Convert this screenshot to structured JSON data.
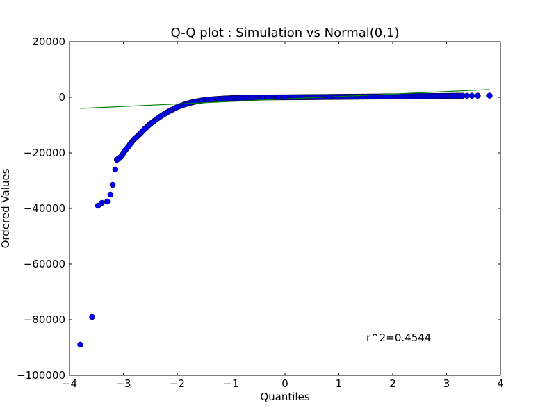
{
  "chart_data": {
    "type": "scatter",
    "title": "Q-Q plot : Simulation vs Normal(0,1)",
    "xlabel": "Quantiles",
    "ylabel": "Ordered Values",
    "xlim": [
      -4,
      4
    ],
    "ylim": [
      -100000,
      20000
    ],
    "x_ticks": [
      -4,
      -3,
      -2,
      -1,
      0,
      1,
      2,
      3,
      4
    ],
    "x_tick_labels": [
      "−4",
      "−3",
      "−2",
      "−1",
      "0",
      "1",
      "2",
      "3",
      "4"
    ],
    "y_ticks": [
      20000,
      0,
      -20000,
      -40000,
      -60000,
      -80000,
      -100000
    ],
    "y_tick_labels": [
      "20000",
      "0",
      "−20000",
      "−40000",
      "−60000",
      "−80000",
      "−100000"
    ],
    "grid": false,
    "legend": "none",
    "annotation": "r^2=0.4544",
    "colors": {
      "points_fill": "#0000ff",
      "points_edge": "#000000",
      "fit_line": "#008000",
      "axes": "#000000",
      "background": "#ffffff"
    },
    "series": [
      {
        "type": "scatter",
        "points": [
          [
            -3.8,
            -89000
          ],
          [
            -3.58,
            -79000
          ],
          [
            -3.47,
            -39000
          ],
          [
            -3.4,
            -38000
          ],
          [
            -3.3,
            -37500
          ],
          [
            -3.24,
            -35000
          ],
          [
            -3.2,
            -31500
          ],
          [
            -3.15,
            -26000
          ],
          [
            -3.12,
            -22500
          ],
          [
            -3.09,
            -22000
          ],
          [
            -3.05,
            -21500
          ],
          [
            -3.02,
            -20800
          ],
          [
            -3.0,
            -20000
          ],
          [
            -2.97,
            -19200
          ],
          [
            -2.94,
            -18500
          ],
          [
            -2.91,
            -17800
          ],
          [
            -2.88,
            -17000
          ],
          [
            -2.85,
            -16300
          ],
          [
            -2.82,
            -15500
          ],
          [
            -2.79,
            -14900
          ],
          [
            -2.76,
            -14400
          ],
          [
            -2.73,
            -13900
          ],
          [
            -2.7,
            -13300
          ],
          [
            -2.67,
            -12700
          ],
          [
            -2.64,
            -12100
          ],
          [
            -2.61,
            -11500
          ],
          [
            -2.58,
            -11000
          ],
          [
            -2.55,
            -10400
          ],
          [
            -2.52,
            -9900
          ],
          [
            -2.49,
            -9400
          ],
          [
            -2.46,
            -9000
          ],
          [
            -2.43,
            -8550
          ],
          [
            -2.4,
            -8100
          ],
          [
            -2.37,
            -7700
          ],
          [
            -2.34,
            -7300
          ],
          [
            -2.31,
            -6900
          ],
          [
            -2.28,
            -6500
          ],
          [
            -2.25,
            -6150
          ],
          [
            -2.22,
            -5800
          ],
          [
            -2.19,
            -5450
          ],
          [
            -2.16,
            -5100
          ],
          [
            -2.13,
            -4800
          ],
          [
            -2.1,
            -4500
          ],
          [
            -2.07,
            -4200
          ],
          [
            -2.04,
            -3900
          ],
          [
            -2.01,
            -3650
          ],
          [
            -1.98,
            -3400
          ],
          [
            -1.95,
            -3150
          ],
          [
            -1.92,
            -2950
          ],
          [
            -1.89,
            -2750
          ],
          [
            -1.86,
            -2550
          ],
          [
            -1.83,
            -2350
          ],
          [
            -1.8,
            -2200
          ],
          [
            -1.77,
            -2050
          ],
          [
            -1.74,
            -1900
          ],
          [
            -1.71,
            -1750
          ],
          [
            -1.68,
            -1600
          ],
          [
            -1.65,
            -1500
          ],
          [
            -1.62,
            -1400
          ],
          [
            -1.59,
            -1300
          ],
          [
            -1.56,
            -1200
          ],
          [
            -1.53,
            -1120
          ],
          [
            -1.5,
            -1050
          ],
          [
            -1.47,
            -980
          ],
          [
            -1.44,
            -910
          ],
          [
            -1.41,
            -850
          ],
          [
            -1.38,
            -790
          ],
          [
            -1.35,
            -740
          ],
          [
            -1.32,
            -690
          ],
          [
            -1.29,
            -640
          ],
          [
            -1.26,
            -600
          ],
          [
            -1.23,
            -560
          ],
          [
            -1.2,
            -520
          ],
          [
            -1.17,
            -485
          ],
          [
            -1.14,
            -450
          ],
          [
            -1.11,
            -420
          ],
          [
            -1.08,
            -390
          ],
          [
            -1.05,
            -365
          ],
          [
            -1.02,
            -340
          ],
          [
            -0.99,
            -315
          ],
          [
            -0.96,
            -290
          ],
          [
            -0.93,
            -270
          ],
          [
            -0.9,
            -250
          ],
          [
            -0.87,
            -230
          ],
          [
            -0.84,
            -215
          ],
          [
            -0.81,
            -200
          ],
          [
            -0.78,
            -185
          ],
          [
            -0.75,
            -170
          ],
          [
            -0.72,
            -155
          ],
          [
            -0.69,
            -142
          ],
          [
            -0.66,
            -130
          ],
          [
            -0.63,
            -118
          ],
          [
            -0.6,
            -107
          ],
          [
            -0.57,
            -97
          ],
          [
            -0.54,
            -88
          ],
          [
            -0.51,
            -80
          ],
          [
            -0.48,
            -72
          ],
          [
            -0.45,
            -65
          ],
          [
            -0.42,
            -58
          ],
          [
            -0.39,
            -52
          ],
          [
            -0.36,
            -46
          ],
          [
            -0.33,
            -41
          ],
          [
            -0.3,
            -36
          ],
          [
            -0.27,
            -31
          ],
          [
            -0.24,
            -27
          ],
          [
            -0.21,
            -23
          ],
          [
            -0.18,
            -19
          ],
          [
            -0.15,
            -16
          ],
          [
            -0.12,
            -13
          ],
          [
            -0.09,
            -10
          ],
          [
            -0.06,
            -7
          ],
          [
            -0.03,
            -4
          ],
          [
            0.0,
            0
          ],
          [
            0.03,
            5
          ],
          [
            0.06,
            10
          ],
          [
            0.09,
            15
          ],
          [
            0.12,
            20
          ],
          [
            0.15,
            25
          ],
          [
            0.18,
            30
          ],
          [
            0.21,
            35
          ],
          [
            0.24,
            40
          ],
          [
            0.27,
            45
          ],
          [
            0.3,
            50
          ],
          [
            0.33,
            55
          ],
          [
            0.36,
            60
          ],
          [
            0.39,
            65
          ],
          [
            0.42,
            70
          ],
          [
            0.45,
            75
          ],
          [
            0.48,
            80
          ],
          [
            0.51,
            85
          ],
          [
            0.54,
            90
          ],
          [
            0.57,
            95
          ],
          [
            0.6,
            100
          ],
          [
            0.63,
            105
          ],
          [
            0.66,
            110
          ],
          [
            0.69,
            115
          ],
          [
            0.72,
            120
          ],
          [
            0.75,
            125
          ],
          [
            0.78,
            130
          ],
          [
            0.81,
            135
          ],
          [
            0.84,
            140
          ],
          [
            0.87,
            145
          ],
          [
            0.9,
            150
          ],
          [
            0.93,
            155
          ],
          [
            0.96,
            160
          ],
          [
            0.99,
            165
          ],
          [
            1.02,
            170
          ],
          [
            1.05,
            175
          ],
          [
            1.08,
            180
          ],
          [
            1.11,
            185
          ],
          [
            1.14,
            190
          ],
          [
            1.17,
            195
          ],
          [
            1.2,
            200
          ],
          [
            1.23,
            205
          ],
          [
            1.26,
            210
          ],
          [
            1.29,
            215
          ],
          [
            1.32,
            220
          ],
          [
            1.35,
            225
          ],
          [
            1.38,
            230
          ],
          [
            1.41,
            235
          ],
          [
            1.44,
            240
          ],
          [
            1.47,
            245
          ],
          [
            1.5,
            250
          ],
          [
            1.53,
            255
          ],
          [
            1.56,
            260
          ],
          [
            1.59,
            265
          ],
          [
            1.62,
            270
          ],
          [
            1.65,
            275
          ],
          [
            1.68,
            280
          ],
          [
            1.71,
            285
          ],
          [
            1.74,
            290
          ],
          [
            1.77,
            295
          ],
          [
            1.8,
            300
          ],
          [
            1.83,
            305
          ],
          [
            1.86,
            310
          ],
          [
            1.89,
            315
          ],
          [
            1.92,
            320
          ],
          [
            1.95,
            325
          ],
          [
            1.98,
            330
          ],
          [
            2.01,
            335
          ],
          [
            2.04,
            340
          ],
          [
            2.07,
            345
          ],
          [
            2.1,
            350
          ],
          [
            2.13,
            355
          ],
          [
            2.16,
            360
          ],
          [
            2.19,
            365
          ],
          [
            2.22,
            370
          ],
          [
            2.25,
            375
          ],
          [
            2.28,
            380
          ],
          [
            2.31,
            385
          ],
          [
            2.34,
            390
          ],
          [
            2.37,
            395
          ],
          [
            2.4,
            400
          ],
          [
            2.43,
            405
          ],
          [
            2.46,
            410
          ],
          [
            2.49,
            415
          ],
          [
            2.52,
            420
          ],
          [
            2.55,
            425
          ],
          [
            2.58,
            430
          ],
          [
            2.61,
            435
          ],
          [
            2.64,
            440
          ],
          [
            2.67,
            445
          ],
          [
            2.7,
            450
          ],
          [
            2.73,
            455
          ],
          [
            2.76,
            460
          ],
          [
            2.79,
            465
          ],
          [
            2.82,
            470
          ],
          [
            2.85,
            475
          ],
          [
            2.88,
            480
          ],
          [
            2.91,
            485
          ],
          [
            2.94,
            490
          ],
          [
            2.97,
            495
          ],
          [
            3.0,
            500
          ],
          [
            3.03,
            505
          ],
          [
            3.06,
            510
          ],
          [
            3.09,
            515
          ],
          [
            3.12,
            520
          ],
          [
            3.15,
            525
          ],
          [
            3.18,
            530
          ],
          [
            3.21,
            535
          ],
          [
            3.24,
            540
          ],
          [
            3.27,
            545
          ],
          [
            3.3,
            550
          ],
          [
            3.38,
            560
          ],
          [
            3.47,
            570
          ],
          [
            3.58,
            580
          ],
          [
            3.8,
            600
          ]
        ]
      },
      {
        "type": "line",
        "x": [
          -3.8,
          3.8
        ],
        "y": [
          -4000,
          2800
        ]
      }
    ]
  }
}
